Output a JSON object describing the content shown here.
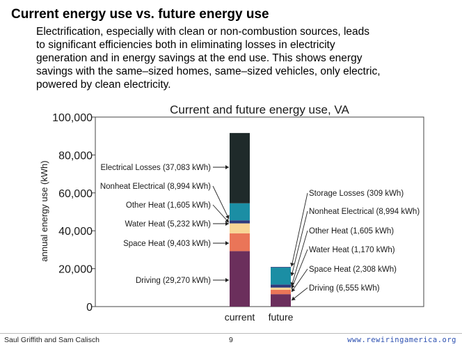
{
  "slide": {
    "title": "Current energy use vs. future energy use",
    "body_lines": [
      "Electrification, especially with clean or non-combustion sources, leads",
      "to significant efficiencies both in eliminating losses in electricity",
      "generation and in energy savings at the end use. This shows energy",
      "savings with the same–sized homes, same–sized vehicles, only electric,",
      "powered by clean electricity."
    ]
  },
  "footer": {
    "authors": "Saul Griffith and Sam Calisch",
    "page": "9",
    "url": "www.rewiringamerica.org"
  },
  "chart_data": {
    "type": "bar",
    "stacked": true,
    "title": "Current and future energy use, VA",
    "ylabel": "annual energy use (kWh)",
    "xlabel": "",
    "ylim": [
      0,
      100000
    ],
    "yticks": [
      0,
      20000,
      40000,
      60000,
      80000,
      100000
    ],
    "ytick_labels": [
      "0",
      "20,000",
      "40,000",
      "60,000",
      "80,000",
      "100,000"
    ],
    "grid": false,
    "categories": [
      "current",
      "future"
    ],
    "series": [
      {
        "key": "driving",
        "color": "#6b2f5c",
        "values": [
          29270,
          6555
        ]
      },
      {
        "key": "space_heat",
        "color": "#ea7558",
        "values": [
          9403,
          2308
        ]
      },
      {
        "key": "water_heat",
        "color": "#f8d595",
        "values": [
          5232,
          1170
        ]
      },
      {
        "key": "other_heat",
        "color": "#2d3a7c",
        "values": [
          1605,
          1605
        ]
      },
      {
        "key": "nonheat_electrical",
        "color": "#1b8ea4",
        "values": [
          8994,
          8994
        ]
      },
      {
        "key": "electrical_losses",
        "color": "#1f2a2a",
        "values": [
          37083,
          0
        ]
      },
      {
        "key": "storage_losses",
        "color": "#2d3a7c",
        "values": [
          0,
          309
        ]
      }
    ],
    "annotations_current": [
      {
        "series": "electrical_losses",
        "text": "Electrical Losses (37,083 kWh)"
      },
      {
        "series": "nonheat_electrical",
        "text": "Nonheat Electrical (8,994 kWh)"
      },
      {
        "series": "other_heat",
        "text": "Other Heat (1,605 kWh)"
      },
      {
        "series": "water_heat",
        "text": "Water Heat (5,232 kWh)"
      },
      {
        "series": "space_heat",
        "text": "Space Heat (9,403 kWh)"
      },
      {
        "series": "driving",
        "text": "Driving (29,270 kWh)"
      }
    ],
    "annotations_future": [
      {
        "series": "storage_losses",
        "text": "Storage Losses (309 kWh)"
      },
      {
        "series": "nonheat_electrical",
        "text": "Nonheat Electrical (8,994 kWh)"
      },
      {
        "series": "other_heat",
        "text": "Other Heat (1,605 kWh)"
      },
      {
        "series": "water_heat",
        "text": "Water Heat (1,170 kWh)"
      },
      {
        "series": "space_heat",
        "text": "Space Heat (2,308 kWh)"
      },
      {
        "series": "driving",
        "text": "Driving (6,555 kWh)"
      }
    ]
  }
}
